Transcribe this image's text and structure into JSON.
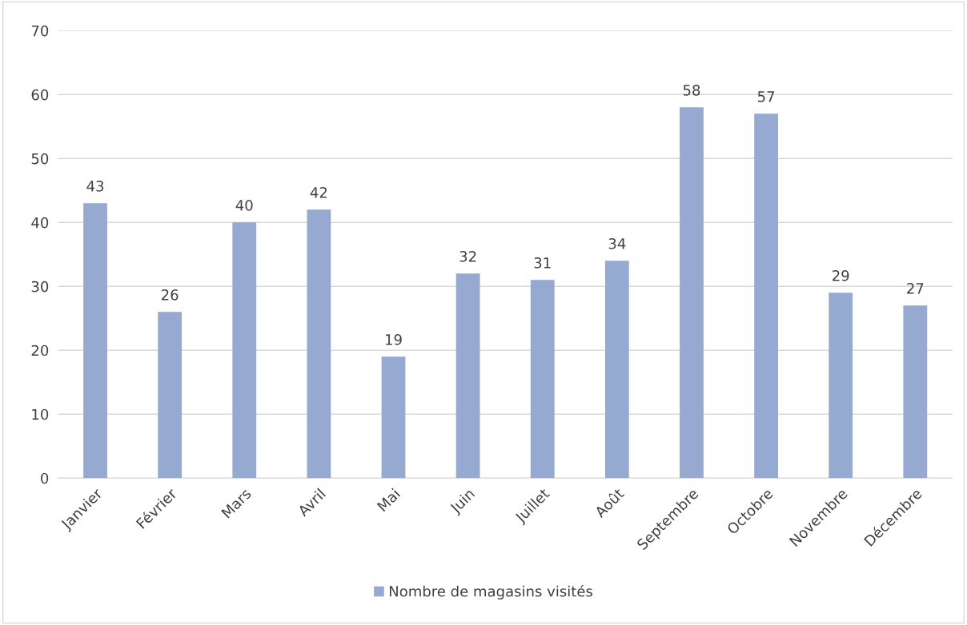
{
  "chart_data": {
    "type": "bar",
    "categories": [
      "Janvier",
      "Février",
      "Mars",
      "Avril",
      "Mai",
      "Juin",
      "Juillet",
      "Août",
      "Septembre",
      "Octobre",
      "Novembre",
      "Décembre"
    ],
    "series": [
      {
        "name": "Nombre de magasins visités",
        "color": "#95a9d1",
        "values": [
          43,
          26,
          40,
          42,
          19,
          32,
          31,
          34,
          58,
          57,
          29,
          27
        ]
      }
    ],
    "ylim": [
      0,
      70
    ],
    "yticks": [
      0,
      10,
      20,
      30,
      40,
      50,
      60,
      70
    ],
    "grid": "y",
    "legend": "bottom",
    "data_labels": true
  }
}
